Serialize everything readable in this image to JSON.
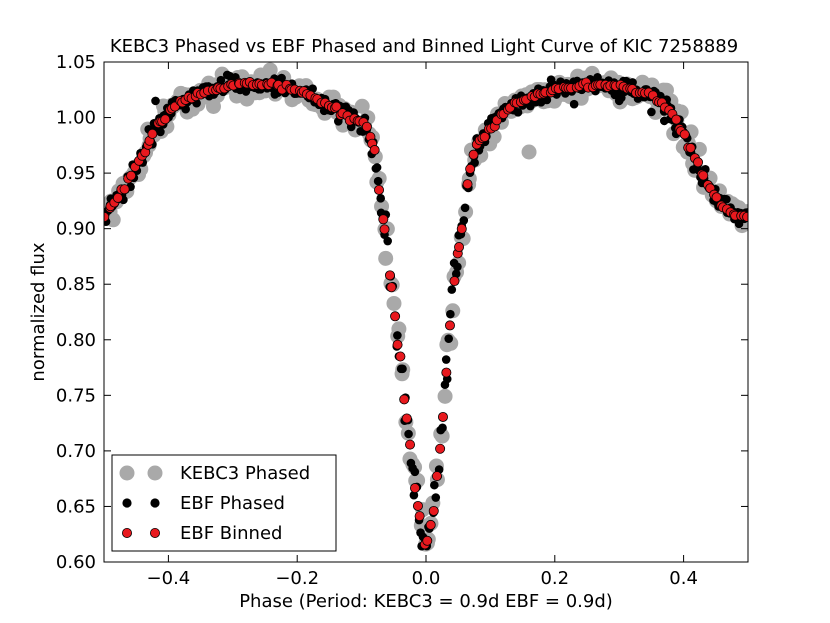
{
  "chart_data": {
    "type": "scatter",
    "title": "KEBC3 Phased vs EBF Phased and Binned Light Curve of KIC 7258889",
    "xlabel": "Phase (Period: KEBC3 = 0.9d EBF = 0.9d)",
    "ylabel": "normalized flux",
    "xlim": [
      -0.5,
      0.5
    ],
    "ylim": [
      0.6,
      1.05
    ],
    "xticks": [
      -0.4,
      -0.2,
      0.0,
      0.2,
      0.4
    ],
    "xtick_labels": [
      "−0.4",
      "−0.2",
      "0.0",
      "0.2",
      "0.4"
    ],
    "yticks": [
      0.6,
      0.65,
      0.7,
      0.75,
      0.8,
      0.85,
      0.9,
      0.95,
      1.0,
      1.05
    ],
    "ytick_labels": [
      "0.60",
      "0.65",
      "0.70",
      "0.75",
      "0.80",
      "0.85",
      "0.90",
      "0.95",
      "1.00",
      "1.05"
    ],
    "legend_position": "bottom-left",
    "curve_model": {
      "x": [
        -0.5,
        -0.47,
        -0.44,
        -0.42,
        -0.4,
        -0.38,
        -0.35,
        -0.3,
        -0.25,
        -0.2,
        -0.15,
        -0.12,
        -0.1,
        -0.09,
        -0.08,
        -0.07,
        -0.06,
        -0.05,
        -0.04,
        -0.03,
        -0.02,
        -0.01,
        0.0,
        0.01,
        0.02,
        0.03,
        0.04,
        0.05,
        0.06,
        0.07,
        0.08,
        0.09,
        0.1,
        0.12,
        0.15,
        0.2,
        0.25,
        0.3,
        0.35,
        0.38,
        0.4,
        0.42,
        0.44,
        0.47,
        0.5
      ],
      "y": [
        0.91,
        0.935,
        0.965,
        0.99,
        1.005,
        1.015,
        1.022,
        1.03,
        1.03,
        1.025,
        1.01,
        1.0,
        0.995,
        0.99,
        0.97,
        0.92,
        0.88,
        0.83,
        0.78,
        0.73,
        0.68,
        0.64,
        0.612,
        0.64,
        0.69,
        0.76,
        0.83,
        0.88,
        0.92,
        0.96,
        0.975,
        0.982,
        0.99,
        1.005,
        1.015,
        1.025,
        1.03,
        1.028,
        1.02,
        1.005,
        0.985,
        0.96,
        0.935,
        0.915,
        0.91
      ]
    },
    "outliers": [
      {
        "series": "KEBC3 Phased",
        "x": 0.16,
        "y": 0.969
      },
      {
        "series": "KEBC3 Phased",
        "x": -0.33,
        "y": 1.01
      },
      {
        "series": "KEBC3 Phased",
        "x": -0.43,
        "y": 0.975
      },
      {
        "series": "EBF Phased",
        "x": 0.35,
        "y": 1.005
      },
      {
        "series": "EBF Phased",
        "x": 0.37,
        "y": 0.997
      },
      {
        "series": "EBF Phased",
        "x": -0.42,
        "y": 1.015
      },
      {
        "series": "EBF Phased",
        "x": 0.23,
        "y": 1.012
      },
      {
        "series": "EBF Phased",
        "x": 0.3,
        "y": 1.015
      }
    ],
    "series": [
      {
        "name": "KEBC3 Phased",
        "color": "#a9a9a9",
        "marker": "circle-large",
        "point_count": 300,
        "scatter": 0.014
      },
      {
        "name": "EBF Phased",
        "color": "#000000",
        "marker": "circle",
        "point_count": 400,
        "scatter": 0.01
      },
      {
        "name": "EBF Binned",
        "color": "#e8191e",
        "edge_color": "#000000",
        "marker": "circle",
        "point_count": 200,
        "scatter": 0.003
      }
    ]
  }
}
